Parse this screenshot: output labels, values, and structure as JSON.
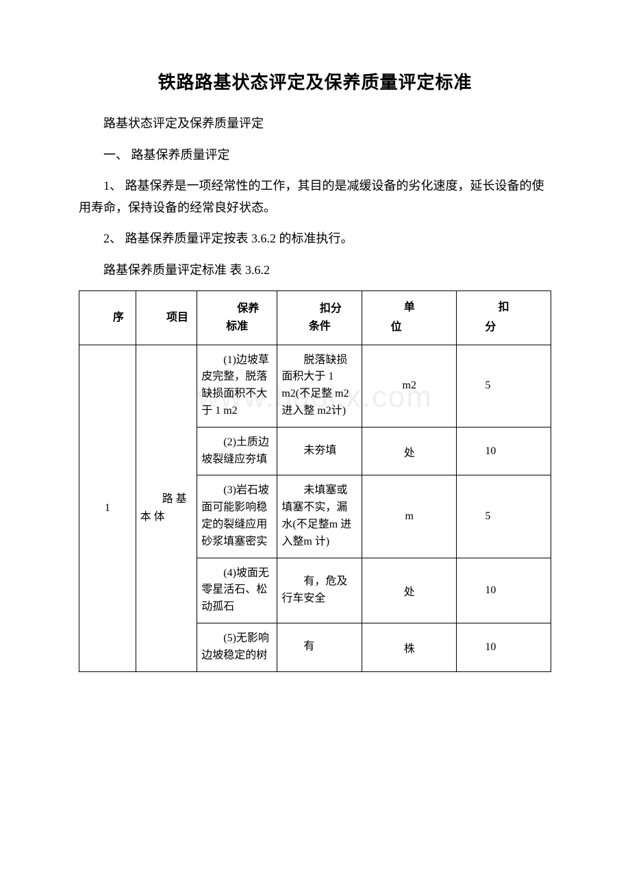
{
  "watermark": "www.bdocx.com",
  "title": "铁路路基状态评定及保养质量评定标准",
  "p1": "路基状态评定及保养质量评定",
  "p2": "一、 路基保养质量评定",
  "p3": "1、 路基保养是一项经常性的工作，其目的是减缓设备的劣化速度，延长设备的使用寿命，保持设备的经常良好状态。",
  "p4": "2、 路基保养质量评定按表 3.6.2 的标准执行。",
  "p5": "路基保养质量评定标准  表 3.6.2",
  "headers": {
    "seq": "序",
    "project": "项目",
    "standard_l1": "保养",
    "standard_l2": "标准",
    "cond_l1": "扣分",
    "cond_l2": "条件",
    "unit_l1": "单",
    "unit_l2": "位",
    "score_l1": "扣",
    "score_l2": "分"
  },
  "rows": {
    "seq": "1",
    "project": "路 基本 体",
    "r1": {
      "standard": "(1)边坡草皮完整，脱落缺损面积不大于 1 m2",
      "condition": "脱落缺损面积大于 1 m2(不足整 m2 进入整 m2计)",
      "unit": "m2",
      "score": "5"
    },
    "r2": {
      "standard": "(2)土质边坡裂缝应夯填",
      "condition": "未夯填",
      "unit": "处",
      "score": "10"
    },
    "r3": {
      "standard": "(3)岩石坡面可能影响稳定的裂缝应用砂浆填塞密实",
      "condition": "未填塞或填塞不实，漏水(不足整m 进入整m 计)",
      "unit": "m",
      "score": "5"
    },
    "r4": {
      "standard": "(4)坡面无零星活石、松动孤石",
      "condition": "有，危及行车安全",
      "unit": "处",
      "score": "10"
    },
    "r5": {
      "standard": "(5)无影响边坡稳定的树",
      "condition": "有",
      "unit": "株",
      "score": "10"
    }
  }
}
